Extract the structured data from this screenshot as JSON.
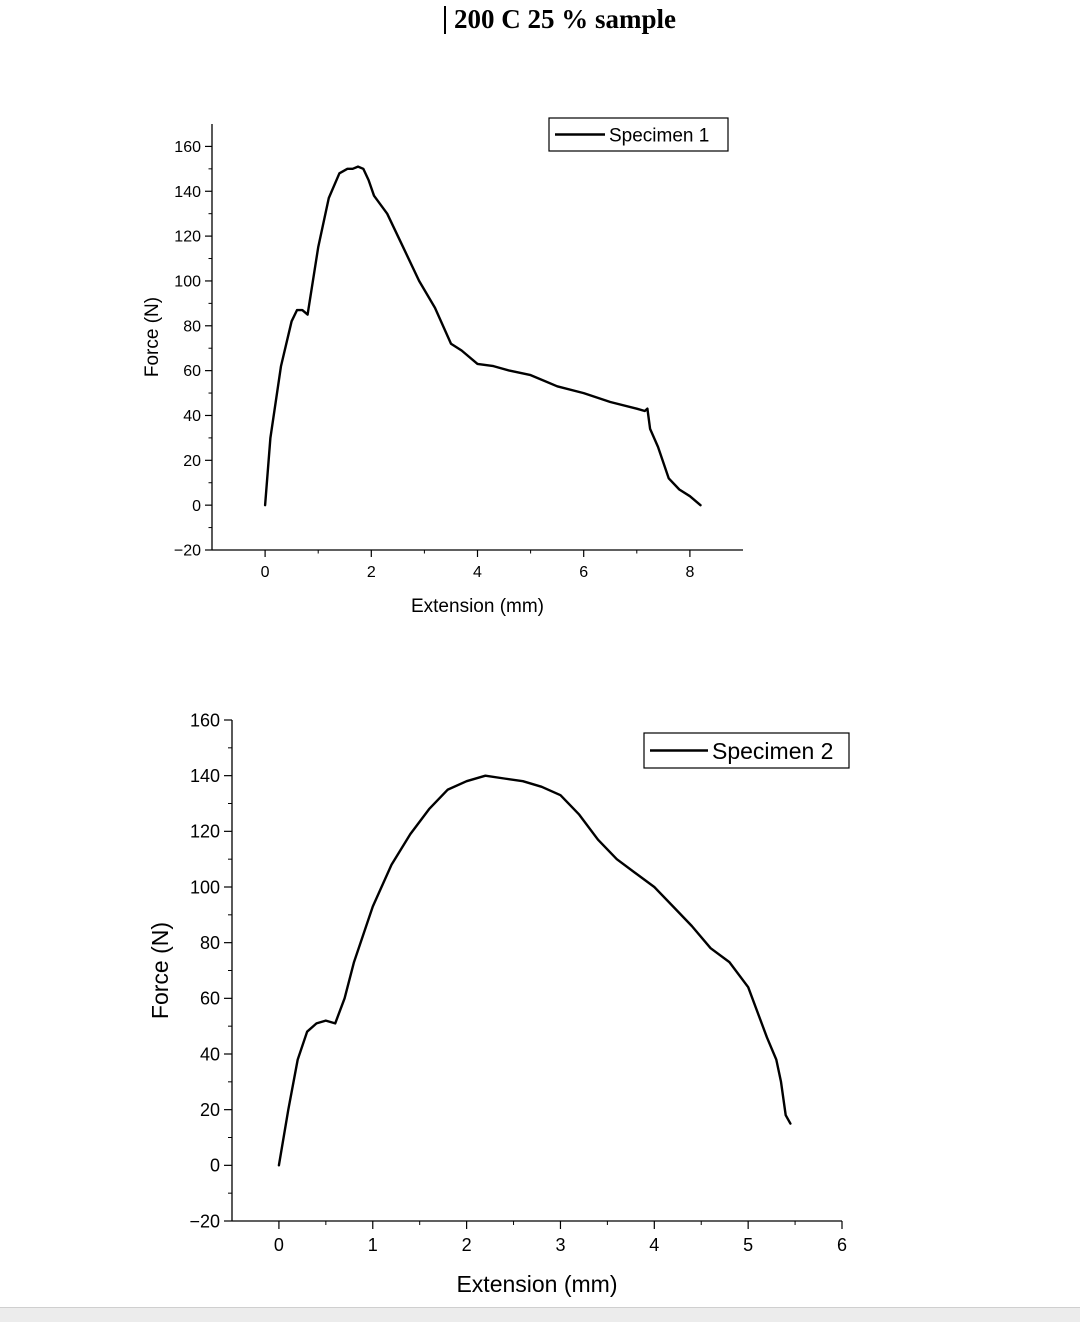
{
  "page": {
    "title": "200 C 25 % sample"
  },
  "chart_data": [
    {
      "type": "line",
      "title": "",
      "xlabel": "Extension (mm)",
      "ylabel": "Force (N)",
      "xlim": [
        -1,
        9
      ],
      "ylim": [
        -20,
        170
      ],
      "xticks": [
        0,
        2,
        4,
        6,
        8
      ],
      "xtick_labels": [
        "0",
        "2",
        "4",
        "6",
        "8"
      ],
      "yticks": [
        -20,
        0,
        20,
        40,
        60,
        80,
        100,
        120,
        140,
        160
      ],
      "ytick_labels": [
        "−20",
        "0",
        "20",
        "40",
        "60",
        "80",
        "100",
        "120",
        "140",
        "160"
      ],
      "grid": false,
      "legend": "top-right",
      "series": [
        {
          "name": "Specimen 1",
          "color": "#000000",
          "x": [
            0,
            0.1,
            0.3,
            0.5,
            0.6,
            0.7,
            0.8,
            1.0,
            1.2,
            1.4,
            1.55,
            1.65,
            1.75,
            1.85,
            1.95,
            2.05,
            2.3,
            2.6,
            2.9,
            3.2,
            3.5,
            3.7,
            4.0,
            4.3,
            4.6,
            5.0,
            5.5,
            6.0,
            6.5,
            7.0,
            7.15,
            7.2,
            7.25,
            7.4,
            7.6,
            7.8,
            8.0,
            8.2
          ],
          "y": [
            0,
            30,
            62,
            82,
            87,
            87,
            85,
            115,
            137,
            148,
            150,
            150,
            151,
            150,
            145,
            138,
            130,
            115,
            100,
            88,
            72,
            69,
            63,
            62,
            60,
            58,
            53,
            50,
            46,
            43,
            42,
            43,
            34,
            26,
            12,
            7,
            4,
            0
          ]
        }
      ]
    },
    {
      "type": "line",
      "title": "",
      "xlabel": "Extension (mm)",
      "ylabel": "Force (N)",
      "xlim": [
        -0.5,
        6
      ],
      "ylim": [
        -20,
        160
      ],
      "xticks": [
        0,
        1,
        2,
        3,
        4,
        5,
        6
      ],
      "xtick_labels": [
        "0",
        "1",
        "2",
        "3",
        "4",
        "5",
        "6"
      ],
      "yticks": [
        -20,
        0,
        20,
        40,
        60,
        80,
        100,
        120,
        140,
        160
      ],
      "ytick_labels": [
        "−20",
        "0",
        "20",
        "40",
        "60",
        "80",
        "100",
        "120",
        "140",
        "160"
      ],
      "grid": false,
      "legend": "top-right",
      "series": [
        {
          "name": "Specimen 2",
          "color": "#000000",
          "x": [
            0,
            0.1,
            0.2,
            0.3,
            0.4,
            0.5,
            0.6,
            0.7,
            0.8,
            1.0,
            1.2,
            1.4,
            1.6,
            1.8,
            2.0,
            2.2,
            2.4,
            2.6,
            2.8,
            3.0,
            3.2,
            3.4,
            3.6,
            3.8,
            4.0,
            4.2,
            4.4,
            4.6,
            4.8,
            5.0,
            5.2,
            5.3,
            5.35,
            5.4,
            5.45
          ],
          "y": [
            0,
            20,
            38,
            48,
            51,
            52,
            51,
            60,
            73,
            93,
            108,
            119,
            128,
            135,
            138,
            140,
            139,
            138,
            136,
            133,
            126,
            117,
            110,
            105,
            100,
            93,
            86,
            78,
            73,
            64,
            46,
            38,
            30,
            18,
            15
          ]
        }
      ]
    }
  ]
}
